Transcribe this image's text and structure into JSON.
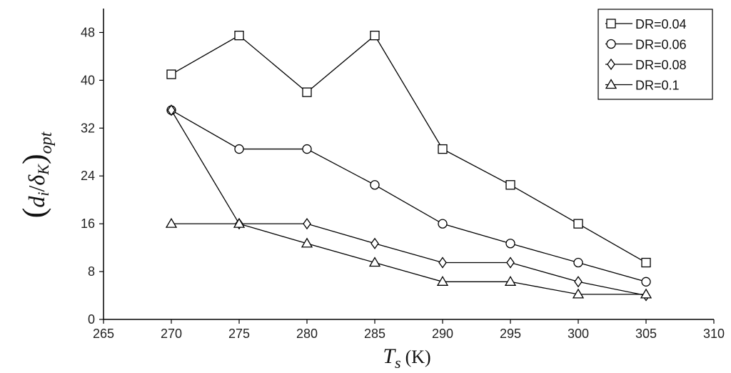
{
  "chart_data": {
    "type": "line",
    "title": "",
    "xlabel": {
      "main": "T",
      "sub": "s",
      "unit": "(K)"
    },
    "ylabel": {
      "open": "(",
      "num": "d",
      "num_sub": "i",
      "slash": "/",
      "den": "δ",
      "den_sub": "K",
      "close": ")",
      "outer_sub": "opt"
    },
    "xlim": [
      265,
      310
    ],
    "ylim": [
      0,
      52
    ],
    "x_ticks": [
      265,
      270,
      275,
      280,
      285,
      290,
      295,
      300,
      305,
      310
    ],
    "y_ticks": [
      0,
      8,
      16,
      24,
      32,
      40,
      48
    ],
    "grid": false,
    "legend_position": "top-right",
    "x": [
      270,
      275,
      280,
      285,
      290,
      295,
      300,
      305
    ],
    "series": [
      {
        "name": "DR=0.04",
        "marker": "square",
        "values": [
          41,
          47.5,
          38,
          47.5,
          28.5,
          22.5,
          16,
          9.5
        ]
      },
      {
        "name": "DR=0.06",
        "marker": "circle",
        "values": [
          35,
          28.5,
          28.5,
          22.5,
          16,
          12.7,
          9.5,
          6.3
        ]
      },
      {
        "name": "DR=0.08",
        "marker": "diamond",
        "values": [
          35,
          16,
          16,
          12.7,
          9.5,
          9.5,
          6.3,
          4
        ]
      },
      {
        "name": "DR=0.1",
        "marker": "triangle",
        "values": [
          16,
          16,
          12.7,
          9.5,
          6.3,
          6.3,
          4.2,
          4.2
        ]
      }
    ]
  }
}
